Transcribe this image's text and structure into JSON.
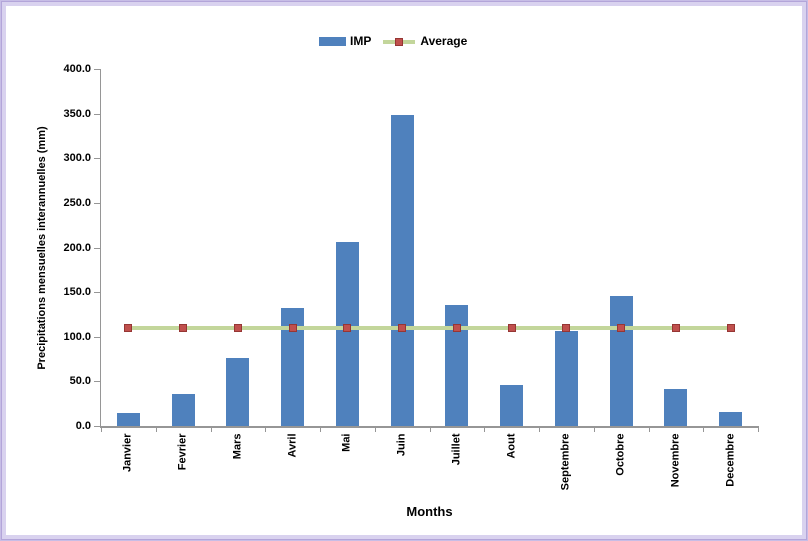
{
  "frame": {
    "border_outer_color": "#b3a5d9",
    "border_inner_color": "#d9d2ef"
  },
  "chart_data": {
    "type": "bar",
    "title": "",
    "categories": [
      "Janvier",
      "Fevrier",
      "Mars",
      "Avril",
      "Mai",
      "Juin",
      "Juillet",
      "Aout",
      "Septembre",
      "Octobre",
      "Novembre",
      "Decembre"
    ],
    "series": [
      {
        "name": "IMP",
        "type": "bar",
        "color": "#4f81bd",
        "values": [
          15,
          36,
          76,
          132,
          206,
          348,
          136,
          46,
          107,
          146,
          41,
          16
        ]
      },
      {
        "name": "Average",
        "type": "line",
        "color": "#c3d69b",
        "marker": "square",
        "marker_color": "#c0504d",
        "marker_border_color": "#963634",
        "values": [
          110,
          110,
          110,
          110,
          110,
          110,
          110,
          110,
          110,
          110,
          110,
          110
        ]
      }
    ],
    "xlabel": "Months",
    "ylabel": "Precipitations mensuelles interannuelles (mm)",
    "ylim": [
      0,
      400
    ],
    "ytick_step": 50,
    "ytick_labels": [
      "0.0",
      "50.0",
      "100.0",
      "150.0",
      "200.0",
      "250.0",
      "300.0",
      "350.0",
      "400.0"
    ],
    "grid": false,
    "legend_position": "top-center",
    "axis_color": "#969696",
    "text_color": "#000000"
  }
}
